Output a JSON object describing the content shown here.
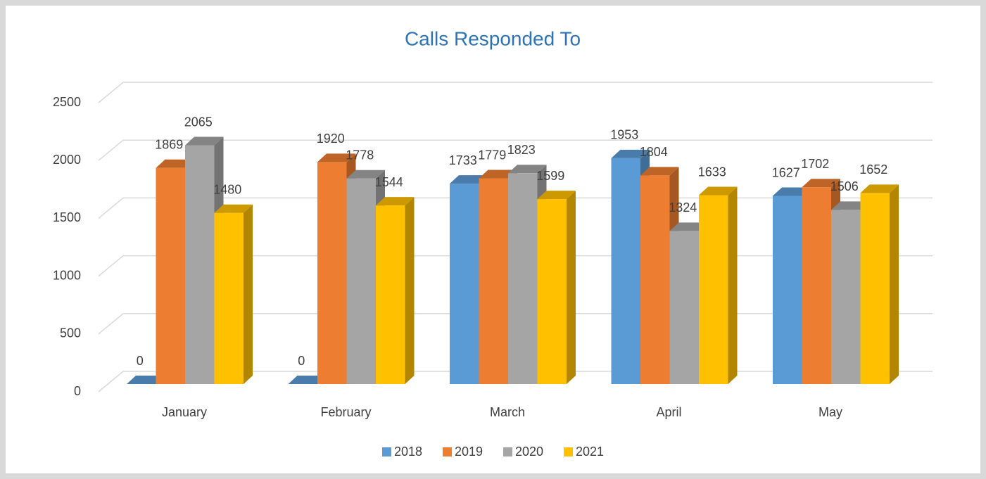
{
  "chart_data": {
    "type": "bar3d",
    "title": "Calls Responded To",
    "categories": [
      "January",
      "February",
      "March",
      "April",
      "May"
    ],
    "series": [
      {
        "name": "2018",
        "color": "#5b9bd5",
        "values": [
          0,
          0,
          1733,
          1953,
          1627
        ]
      },
      {
        "name": "2019",
        "color": "#ed7d31",
        "values": [
          1869,
          1920,
          1779,
          1804,
          1702
        ]
      },
      {
        "name": "2020",
        "color": "#a5a5a5",
        "values": [
          2065,
          1778,
          1823,
          1324,
          1506
        ]
      },
      {
        "name": "2021",
        "color": "#ffc000",
        "values": [
          1480,
          1544,
          1599,
          1633,
          1652
        ]
      }
    ],
    "ylim": [
      0,
      2500
    ],
    "yticks": [
      0,
      500,
      1000,
      1500,
      2000,
      2500
    ],
    "grid": true,
    "legend": "bottom"
  }
}
